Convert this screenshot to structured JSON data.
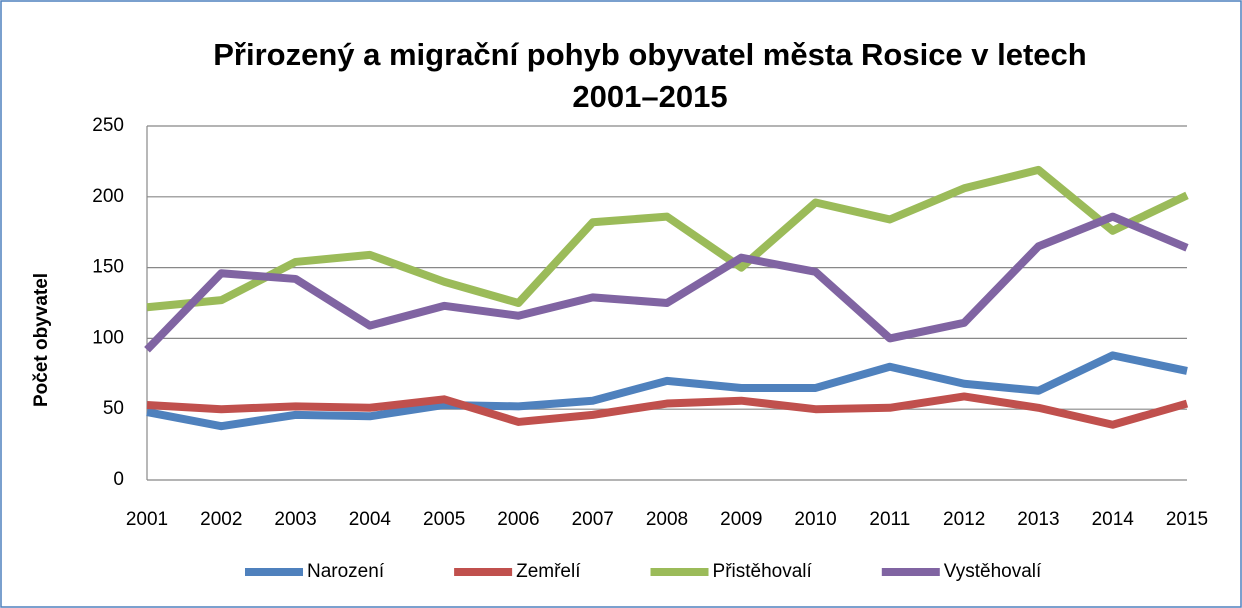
{
  "chart_data": {
    "type": "line",
    "title": "Přirozený a migrační pohyb obyvatel města Rosice v letech 2001–2015",
    "y_label": "Počet obyvatel",
    "categories": [
      "2001",
      "2002",
      "2003",
      "2004",
      "2005",
      "2006",
      "2007",
      "2008",
      "2009",
      "2010",
      "2011",
      "2012",
      "2013",
      "2014",
      "2015"
    ],
    "series": [
      {
        "name": "Narození",
        "color": "#4f81bd",
        "values": [
          48,
          38,
          46,
          45,
          53,
          52,
          56,
          70,
          65,
          65,
          80,
          68,
          63,
          88,
          77
        ]
      },
      {
        "name": "Zemřelí",
        "color": "#c0504d",
        "values": [
          53,
          50,
          52,
          51,
          57,
          41,
          46,
          54,
          56,
          50,
          51,
          59,
          51,
          39,
          54
        ]
      },
      {
        "name": "Přistěhovalí",
        "color": "#9bbb59",
        "values": [
          122,
          127,
          154,
          159,
          140,
          125,
          182,
          186,
          150,
          196,
          184,
          206,
          219,
          176,
          201
        ]
      },
      {
        "name": "Vystěhovalí",
        "color": "#8064a2",
        "values": [
          92,
          146,
          142,
          109,
          123,
          116,
          129,
          125,
          157,
          147,
          100,
          111,
          165,
          186,
          164
        ]
      }
    ],
    "ylim": [
      0,
      250
    ],
    "yticks": [
      0,
      50,
      100,
      150,
      200,
      250
    ],
    "grid": true,
    "legend": "bottom"
  }
}
